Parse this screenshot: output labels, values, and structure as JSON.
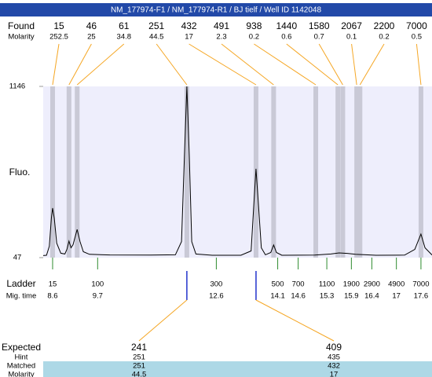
{
  "chart_data": {
    "type": "line",
    "title": "NM_177974-F1 / NM_177974-R1 / BJ tielf / Well ID 1142048",
    "y_label": "Fluo.",
    "ylim": [
      47,
      1146
    ],
    "yticks": [
      47,
      1146
    ],
    "xlim": [
      8.37,
      17.87
    ],
    "color": "#000000",
    "x": [
      8.37,
      8.45,
      8.52,
      8.57,
      8.6,
      8.64,
      8.7,
      8.8,
      8.9,
      8.95,
      9.0,
      9.05,
      9.1,
      9.2,
      9.27,
      9.35,
      9.5,
      10.0,
      11.0,
      11.6,
      11.75,
      11.82,
      11.88,
      11.94,
      12.0,
      12.1,
      12.5,
      13.2,
      13.45,
      13.52,
      13.57,
      13.62,
      13.7,
      13.8,
      13.93,
      14.0,
      14.07,
      14.2,
      15.0,
      15.4,
      15.6,
      15.8,
      16.0,
      16.5,
      17.2,
      17.45,
      17.6,
      17.7,
      17.87
    ],
    "values": [
      60,
      62,
      120,
      300,
      365,
      300,
      140,
      75,
      70,
      100,
      153,
      110,
      130,
      228,
      150,
      85,
      68,
      64,
      63,
      65,
      150,
      700,
      1146,
      700,
      150,
      70,
      62,
      62,
      90,
      400,
      617,
      420,
      110,
      65,
      80,
      128,
      80,
      62,
      63,
      70,
      77,
      74,
      68,
      62,
      63,
      100,
      198,
      110,
      64
    ],
    "found": {
      "label": "Found",
      "sub_label": "Molarity",
      "sizes": [
        15,
        46,
        61,
        251,
        432,
        491,
        938,
        1440,
        1580,
        2067,
        2200,
        7000
      ],
      "molarity": [
        252.5,
        25,
        34.8,
        44.5,
        17,
        2.3,
        0.2,
        0.6,
        0.7,
        0.1,
        0.2,
        0.5
      ],
      "x": [
        8.6,
        9.0,
        9.2,
        11.88,
        13.57,
        14.0,
        15.03,
        15.57,
        15.69,
        16.03,
        16.11,
        17.6
      ]
    },
    "ladder": {
      "label": "Ladder",
      "sub_label": "Mig. time",
      "sizes": [
        15,
        100,
        300,
        500,
        700,
        1100,
        1900,
        2900,
        4900,
        7000
      ],
      "times": [
        8.6,
        9.7,
        12.6,
        14.1,
        14.6,
        15.3,
        15.9,
        16.4,
        17,
        17.6
      ]
    },
    "expected": {
      "labels": [
        "Expected",
        "Hint",
        "Matched",
        "Molarity"
      ],
      "columns": [
        [
          241,
          251,
          251,
          44.5
        ],
        [
          409,
          435,
          432,
          17
        ]
      ]
    }
  }
}
